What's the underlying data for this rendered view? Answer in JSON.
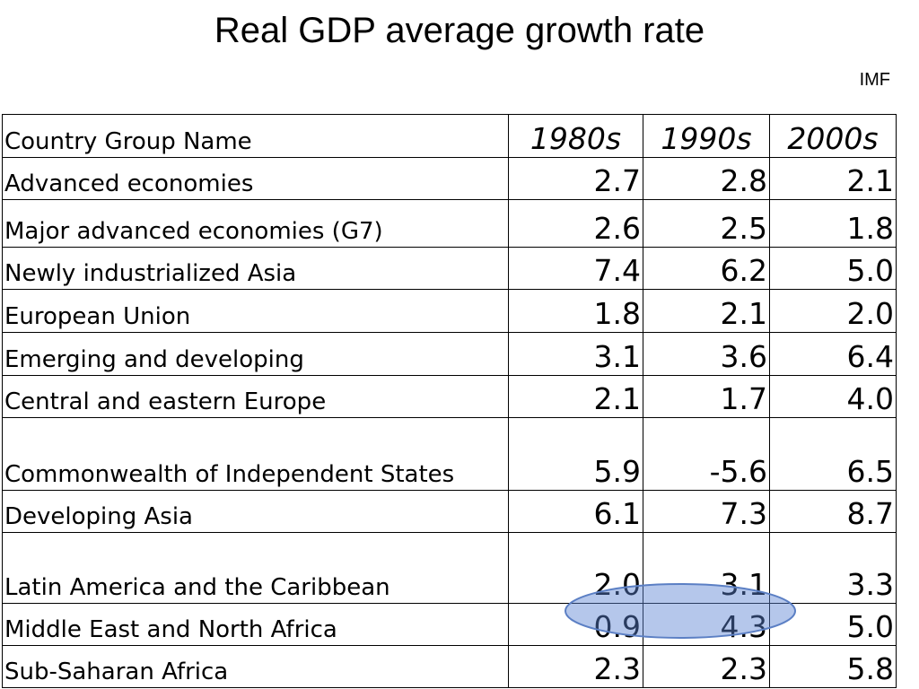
{
  "header": {
    "title": "Real GDP average growth rate",
    "source": "IMF"
  },
  "table": {
    "columns": [
      "Country Group Name",
      "1980s",
      "1990s",
      "2000s"
    ],
    "rows": [
      [
        "Advanced economies",
        "2.7",
        "2.8",
        "2.1"
      ],
      [
        "Major advanced economies (G7)",
        "2.6",
        "2.5",
        "1.8"
      ],
      [
        "Newly industrialized Asia",
        "7.4",
        "6.2",
        "5.0"
      ],
      [
        "European Union",
        "1.8",
        "2.1",
        "2.0"
      ],
      [
        "Emerging and developing",
        "3.1",
        "3.6",
        "6.4"
      ],
      [
        "Central and eastern Europe",
        "2.1",
        "1.7",
        "4.0"
      ],
      [
        "Commonwealth of Independent States",
        "5.9",
        "-5.6",
        "6.5"
      ],
      [
        "Developing Asia",
        "6.1",
        "7.3",
        "8.7"
      ],
      [
        "Latin America and the Caribbean",
        "2.0",
        "3.1",
        "3.3"
      ],
      [
        "Middle East and North Africa",
        "0.9",
        "4.3",
        "5.0"
      ],
      [
        "Sub-Saharan Africa",
        "2.3",
        "2.3",
        "5.8"
      ]
    ]
  }
}
